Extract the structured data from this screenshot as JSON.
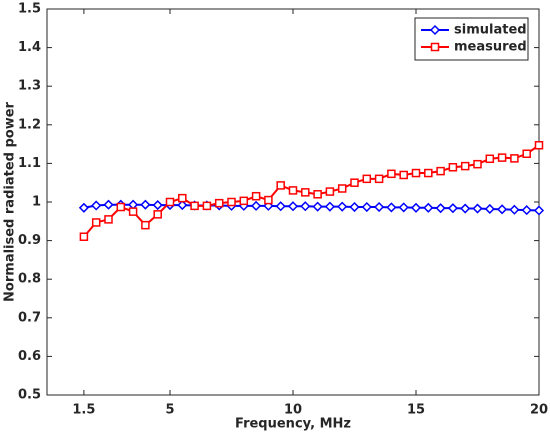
{
  "chart_data": {
    "type": "line",
    "xlabel": "Frequency, MHz",
    "ylabel": "Normalised radiated power",
    "x": [
      1.5,
      2,
      2.5,
      3,
      3.5,
      4,
      4.5,
      5,
      5.5,
      6,
      6.5,
      7,
      7.5,
      8,
      8.5,
      9,
      9.5,
      10,
      10.5,
      11,
      11.5,
      12,
      12.5,
      13,
      13.5,
      14,
      14.5,
      15,
      15.5,
      16,
      16.5,
      17,
      17.5,
      18,
      18.5,
      19,
      19.5,
      20
    ],
    "series": [
      {
        "name": "simulated",
        "color": "#0000ff",
        "marker": "diamond",
        "values": [
          0.985,
          0.991,
          0.993,
          0.993,
          0.993,
          0.993,
          0.992,
          0.992,
          0.992,
          0.991,
          0.991,
          0.991,
          0.99,
          0.99,
          0.99,
          0.99,
          0.989,
          0.989,
          0.989,
          0.988,
          0.988,
          0.988,
          0.987,
          0.987,
          0.987,
          0.986,
          0.986,
          0.985,
          0.985,
          0.984,
          0.984,
          0.983,
          0.983,
          0.982,
          0.981,
          0.98,
          0.979,
          0.978
        ]
      },
      {
        "name": "measured",
        "color": "#ff0000",
        "marker": "square",
        "values": [
          0.91,
          0.947,
          0.955,
          0.987,
          0.975,
          0.94,
          0.968,
          1.0,
          1.01,
          0.99,
          0.99,
          0.997,
          1.0,
          1.003,
          1.015,
          1.005,
          1.043,
          1.03,
          1.025,
          1.02,
          1.027,
          1.035,
          1.05,
          1.06,
          1.06,
          1.073,
          1.07,
          1.075,
          1.075,
          1.08,
          1.09,
          1.093,
          1.098,
          1.112,
          1.115,
          1.113,
          1.125,
          1.147
        ]
      }
    ],
    "xlim": [
      0,
      20
    ],
    "xticks": [
      1.5,
      5,
      10,
      15,
      20
    ],
    "ylim": [
      0.5,
      1.5
    ],
    "yticks": [
      0.5,
      0.6,
      0.7,
      0.8,
      0.9,
      1,
      1.1,
      1.2,
      1.3,
      1.4,
      1.5
    ],
    "grid": false,
    "legend": "upper right"
  }
}
